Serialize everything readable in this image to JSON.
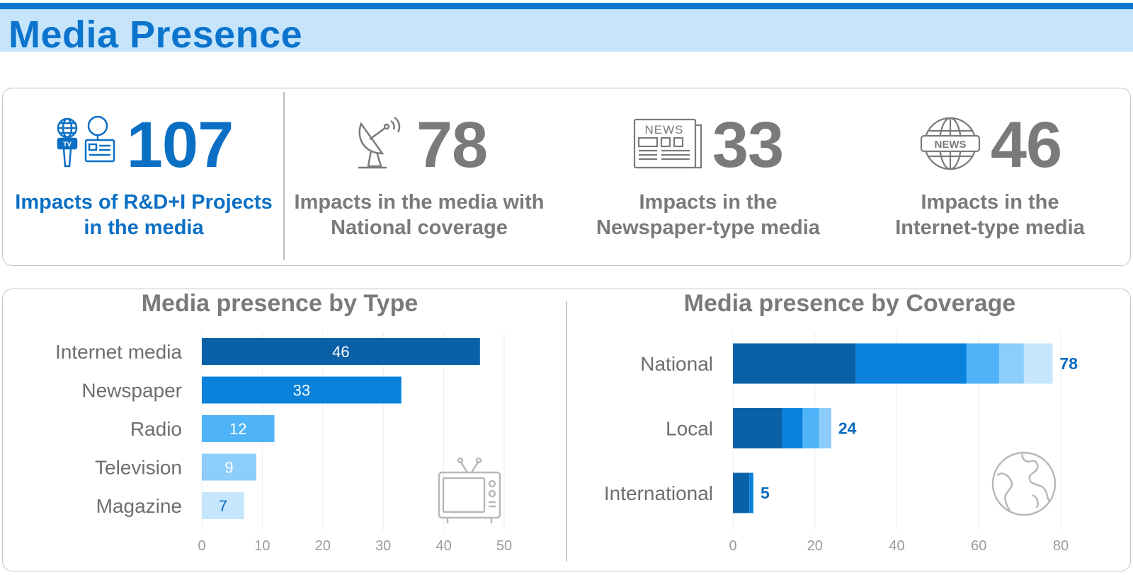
{
  "header": {
    "title": "Media Presence"
  },
  "kpis": [
    {
      "value": "107",
      "label": "Impacts of R&D+I Projects\nin the media",
      "color": "#0b6fc4",
      "icon": "tv-microphone-badge-icon"
    },
    {
      "value": "78",
      "label": "Impacts in the media with\nNational coverage",
      "color": "#7a7a7a",
      "icon": "satellite-dish-icon"
    },
    {
      "value": "33",
      "label": "Impacts in the\nNewspaper-type media",
      "color": "#7a7a7a",
      "icon": "newspaper-icon"
    },
    {
      "value": "46",
      "label": "Impacts in the\nInternet-type media",
      "color": "#7a7a7a",
      "icon": "globe-news-icon"
    }
  ],
  "chart_data": [
    {
      "type": "bar",
      "orientation": "horizontal",
      "title": "Media presence by Type",
      "categories": [
        "Internet media",
        "Newspaper",
        "Radio",
        "Television",
        "Magazine"
      ],
      "values": [
        46,
        33,
        12,
        9,
        7
      ],
      "colors": [
        "#0a61a8",
        "#0a82dc",
        "#4fb3f7",
        "#8ccdfb",
        "#c6e6fd"
      ],
      "label_colors": [
        "#ffffff",
        "#ffffff",
        "#ffffff",
        "#ffffff",
        "#0a6bc0"
      ],
      "xlim": [
        0,
        50
      ],
      "xticks": [
        0,
        10,
        20,
        30,
        40,
        50
      ],
      "grid": true,
      "icon": "television-icon"
    },
    {
      "type": "bar",
      "orientation": "horizontal",
      "stacked": true,
      "title": "Media presence by Coverage",
      "categories": [
        "National",
        "Local",
        "International"
      ],
      "segments": [
        [
          30,
          27,
          8,
          6,
          7
        ],
        [
          12,
          5,
          4,
          3
        ],
        [
          4,
          1
        ]
      ],
      "segment_colors": [
        "#0a61a8",
        "#0a82dc",
        "#4fb3f7",
        "#8ccdfb",
        "#c6e6fd"
      ],
      "totals": [
        78,
        24,
        5
      ],
      "total_label_color": "#0a6bc0",
      "xlim": [
        0,
        80
      ],
      "xticks": [
        0,
        20,
        40,
        60,
        80
      ],
      "grid": true,
      "icon": "globe-icon"
    }
  ]
}
